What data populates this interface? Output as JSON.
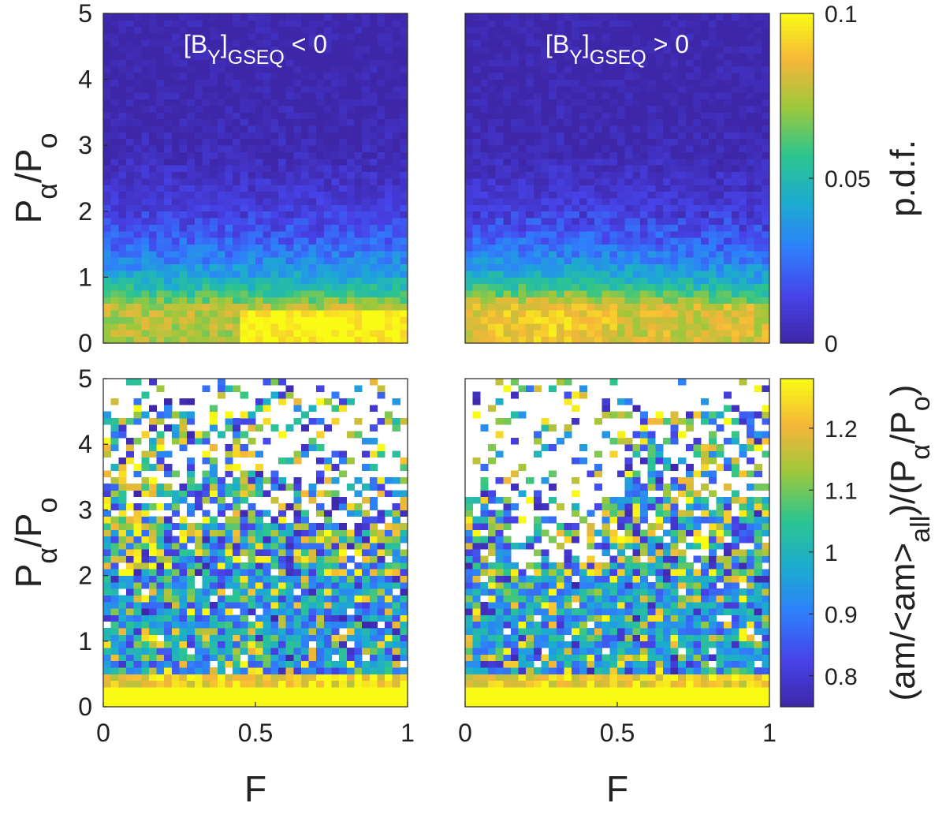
{
  "colors": {
    "colormap": [
      "#3e26a8",
      "#4743e8",
      "#2f7efc",
      "#1caccf",
      "#2dc58e",
      "#9cc83c",
      "#f5b639",
      "#f9fb15"
    ],
    "empty_bin": "#ffffff",
    "annotation": "#ffffff",
    "axes_text": "#222222"
  },
  "chart_data": [
    {
      "id": "top-left",
      "type": "heatmap",
      "annotation": {
        "base": "[B",
        "sub1": "Y",
        "mid": "]",
        "sub2": "GSEQ",
        "tail": " < 0"
      },
      "ylabel": {
        "base": "P",
        "sub": "α",
        "tail": "/P",
        "sub2": "o"
      },
      "xlabel": "",
      "xlim": [
        0,
        1
      ],
      "ylim": [
        0,
        5
      ],
      "xticks": [],
      "yticks": [
        "0",
        "1",
        "2",
        "3",
        "4",
        "5"
      ],
      "bins": {
        "nx": 40,
        "ny": 50
      },
      "color_range": [
        0,
        0.1
      ],
      "description_of_values": "p.d.f. high (~0.1) at P/Po below 0.6, strongest for F 0.5-1; moderate 0.05-0.08 up to P/Po 1.2; decays to ~0 above 3",
      "seed": 11
    },
    {
      "id": "top-right",
      "type": "heatmap",
      "annotation": {
        "base": "[B",
        "sub1": "Y",
        "mid": "]",
        "sub2": "GSEQ",
        "tail": " > 0"
      },
      "ylabel": {
        "base": "",
        "sub": "",
        "tail": "",
        "sub2": ""
      },
      "xlabel": "",
      "xlim": [
        0,
        1
      ],
      "ylim": [
        0,
        5
      ],
      "xticks": [],
      "yticks": [],
      "bins": {
        "nx": 40,
        "ny": 50
      },
      "color_range": [
        0,
        0.1
      ],
      "seed": 23
    },
    {
      "id": "bottom-left",
      "type": "heatmap",
      "annotation": null,
      "ylabel": {
        "base": "P",
        "sub": "α",
        "tail": "/P",
        "sub2": "o"
      },
      "xlabel": "F",
      "xlim": [
        0,
        1
      ],
      "ylim": [
        0,
        5
      ],
      "xticks": [
        "0",
        "0.5",
        "1"
      ],
      "yticks": [
        "0",
        "1",
        "2",
        "3",
        "4",
        "5"
      ],
      "bins": {
        "nx": 40,
        "ny": 50
      },
      "color_range": [
        0.75,
        1.28
      ],
      "seed": 37
    },
    {
      "id": "bottom-right",
      "type": "heatmap",
      "annotation": null,
      "ylabel": {
        "base": "",
        "sub": "",
        "tail": "",
        "sub2": ""
      },
      "xlabel": "F",
      "xlim": [
        0,
        1
      ],
      "ylim": [
        0,
        5
      ],
      "xticks": [
        "0",
        "0.5",
        "1"
      ],
      "yticks": [],
      "bins": {
        "nx": 40,
        "ny": 50
      },
      "color_range": [
        0.75,
        1.28
      ],
      "seed": 53
    }
  ],
  "colorbars": [
    {
      "id": "pdf-colorbar",
      "range": [
        0,
        0.1
      ],
      "ticks": [
        {
          "value": 0.1,
          "label": "0.1"
        },
        {
          "value": 0.05,
          "label": "0.05"
        },
        {
          "value": 0,
          "label": "0"
        }
      ],
      "label": {
        "base": "p.d.f.",
        "sub": "",
        "tail": "",
        "sub2": "",
        "tail2": ""
      }
    },
    {
      "id": "ratio-colorbar",
      "range": [
        0.75,
        1.28
      ],
      "ticks": [
        {
          "value": 1.2,
          "label": "1.2"
        },
        {
          "value": 1.1,
          "label": "1.1"
        },
        {
          "value": 1.0,
          "label": "1"
        },
        {
          "value": 0.9,
          "label": "0.9"
        },
        {
          "value": 0.8,
          "label": "0.8"
        }
      ],
      "label": {
        "base": "(am/<am>",
        "sub": "all",
        "tail": ")/(P",
        "sub2": "α",
        "tail2": "/P",
        "sub3": "o",
        "tail3": ")"
      }
    }
  ]
}
